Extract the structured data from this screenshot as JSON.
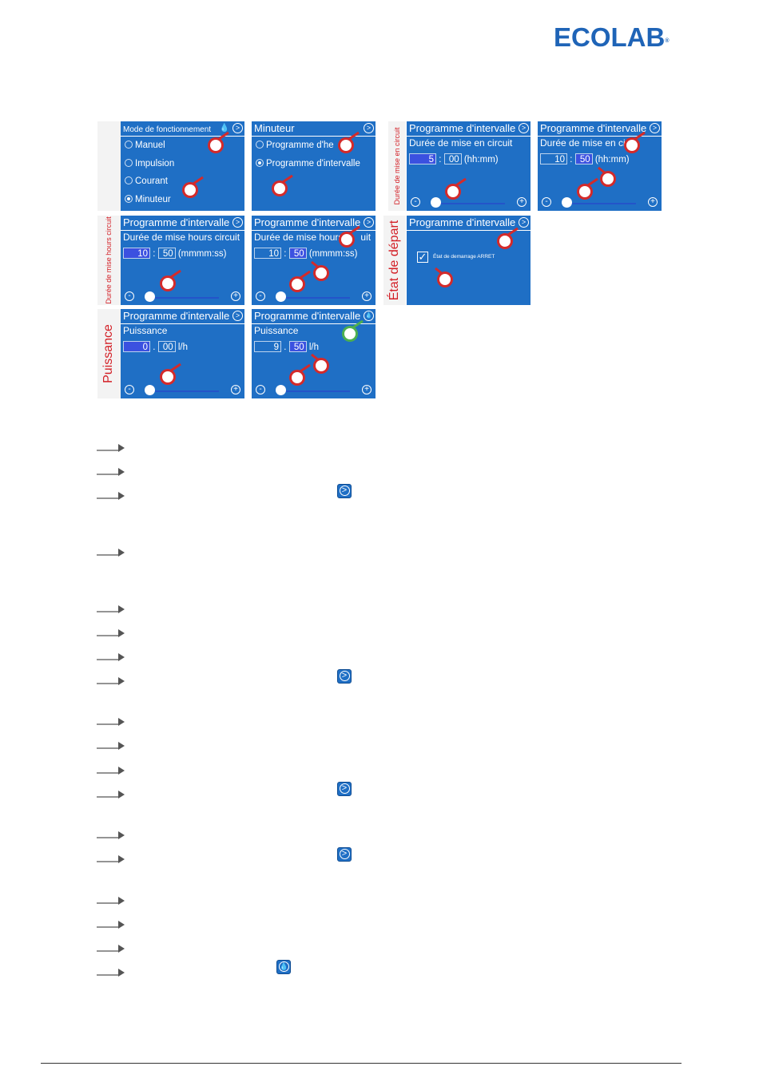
{
  "brand": {
    "name": "ECOLAB",
    "mark": "®"
  },
  "side_labels": {
    "duree_circuit": "Durée de mise en circuit",
    "duree_hours": "Durée de mise hours circuit",
    "etat_depart": "État de départ",
    "puissance": "Puissance"
  },
  "screens": {
    "s1": {
      "title": "Mode de fonctionnement",
      "nav": ">",
      "drop": "💧",
      "options": [
        "Manuel",
        "Impulsion",
        "Courant",
        "Minuteur"
      ]
    },
    "s2": {
      "title": "Minuteur",
      "nav": ">",
      "options": [
        "Programme d'he",
        "Programme d'intervalle"
      ]
    },
    "s3": {
      "title": "Programme d'intervalle",
      "nav": ">",
      "sub": "Durée de mise en circuit",
      "f1": "5",
      "f2": "00",
      "unit": "(hh:mm)"
    },
    "s4": {
      "title": "Programme d'intervalle",
      "nav": ">",
      "sub": "Durée de mise en cir",
      "f1": "10",
      "f2": "50",
      "unit": "(hh:mm)"
    },
    "s5": {
      "title": "Programme d'intervalle",
      "nav": ">",
      "sub": "Durée de mise hours circuit",
      "f1": "10",
      "f2": "50",
      "unit": "(mmmm:ss)"
    },
    "s6": {
      "title": "Programme d'intervalle",
      "nav": ">",
      "sub": "Durée de mise hours",
      "sub_tail": "uit",
      "f1": "10",
      "f2": "50",
      "unit": "(mmmm:ss)"
    },
    "s7": {
      "title": "Programme d'intervalle",
      "nav": ">",
      "check_label": "État de demarrage ARRET"
    },
    "s8": {
      "title": "Programme d'intervalle",
      "nav": ">",
      "sub": "Puissance",
      "f1": "0",
      "f2": "00",
      "unit": "l/h"
    },
    "s9": {
      "title": "Programme d'intervalle",
      "nav": "💧",
      "sub": "Puissance",
      "f1": "9",
      "f2": "50",
      "unit": "l/h"
    }
  },
  "controls": {
    "minus": "-",
    "plus": "+",
    "colon": ":",
    "dot": "."
  },
  "inline_buttons": {
    "next": ">",
    "drop": "💧"
  },
  "colors": {
    "screen_blue": "#1f6fc5",
    "brand_blue": "#1f64b7",
    "label_red": "#d31f26",
    "hand_red": "#d42a2a",
    "hand_green": "#4caf50"
  }
}
